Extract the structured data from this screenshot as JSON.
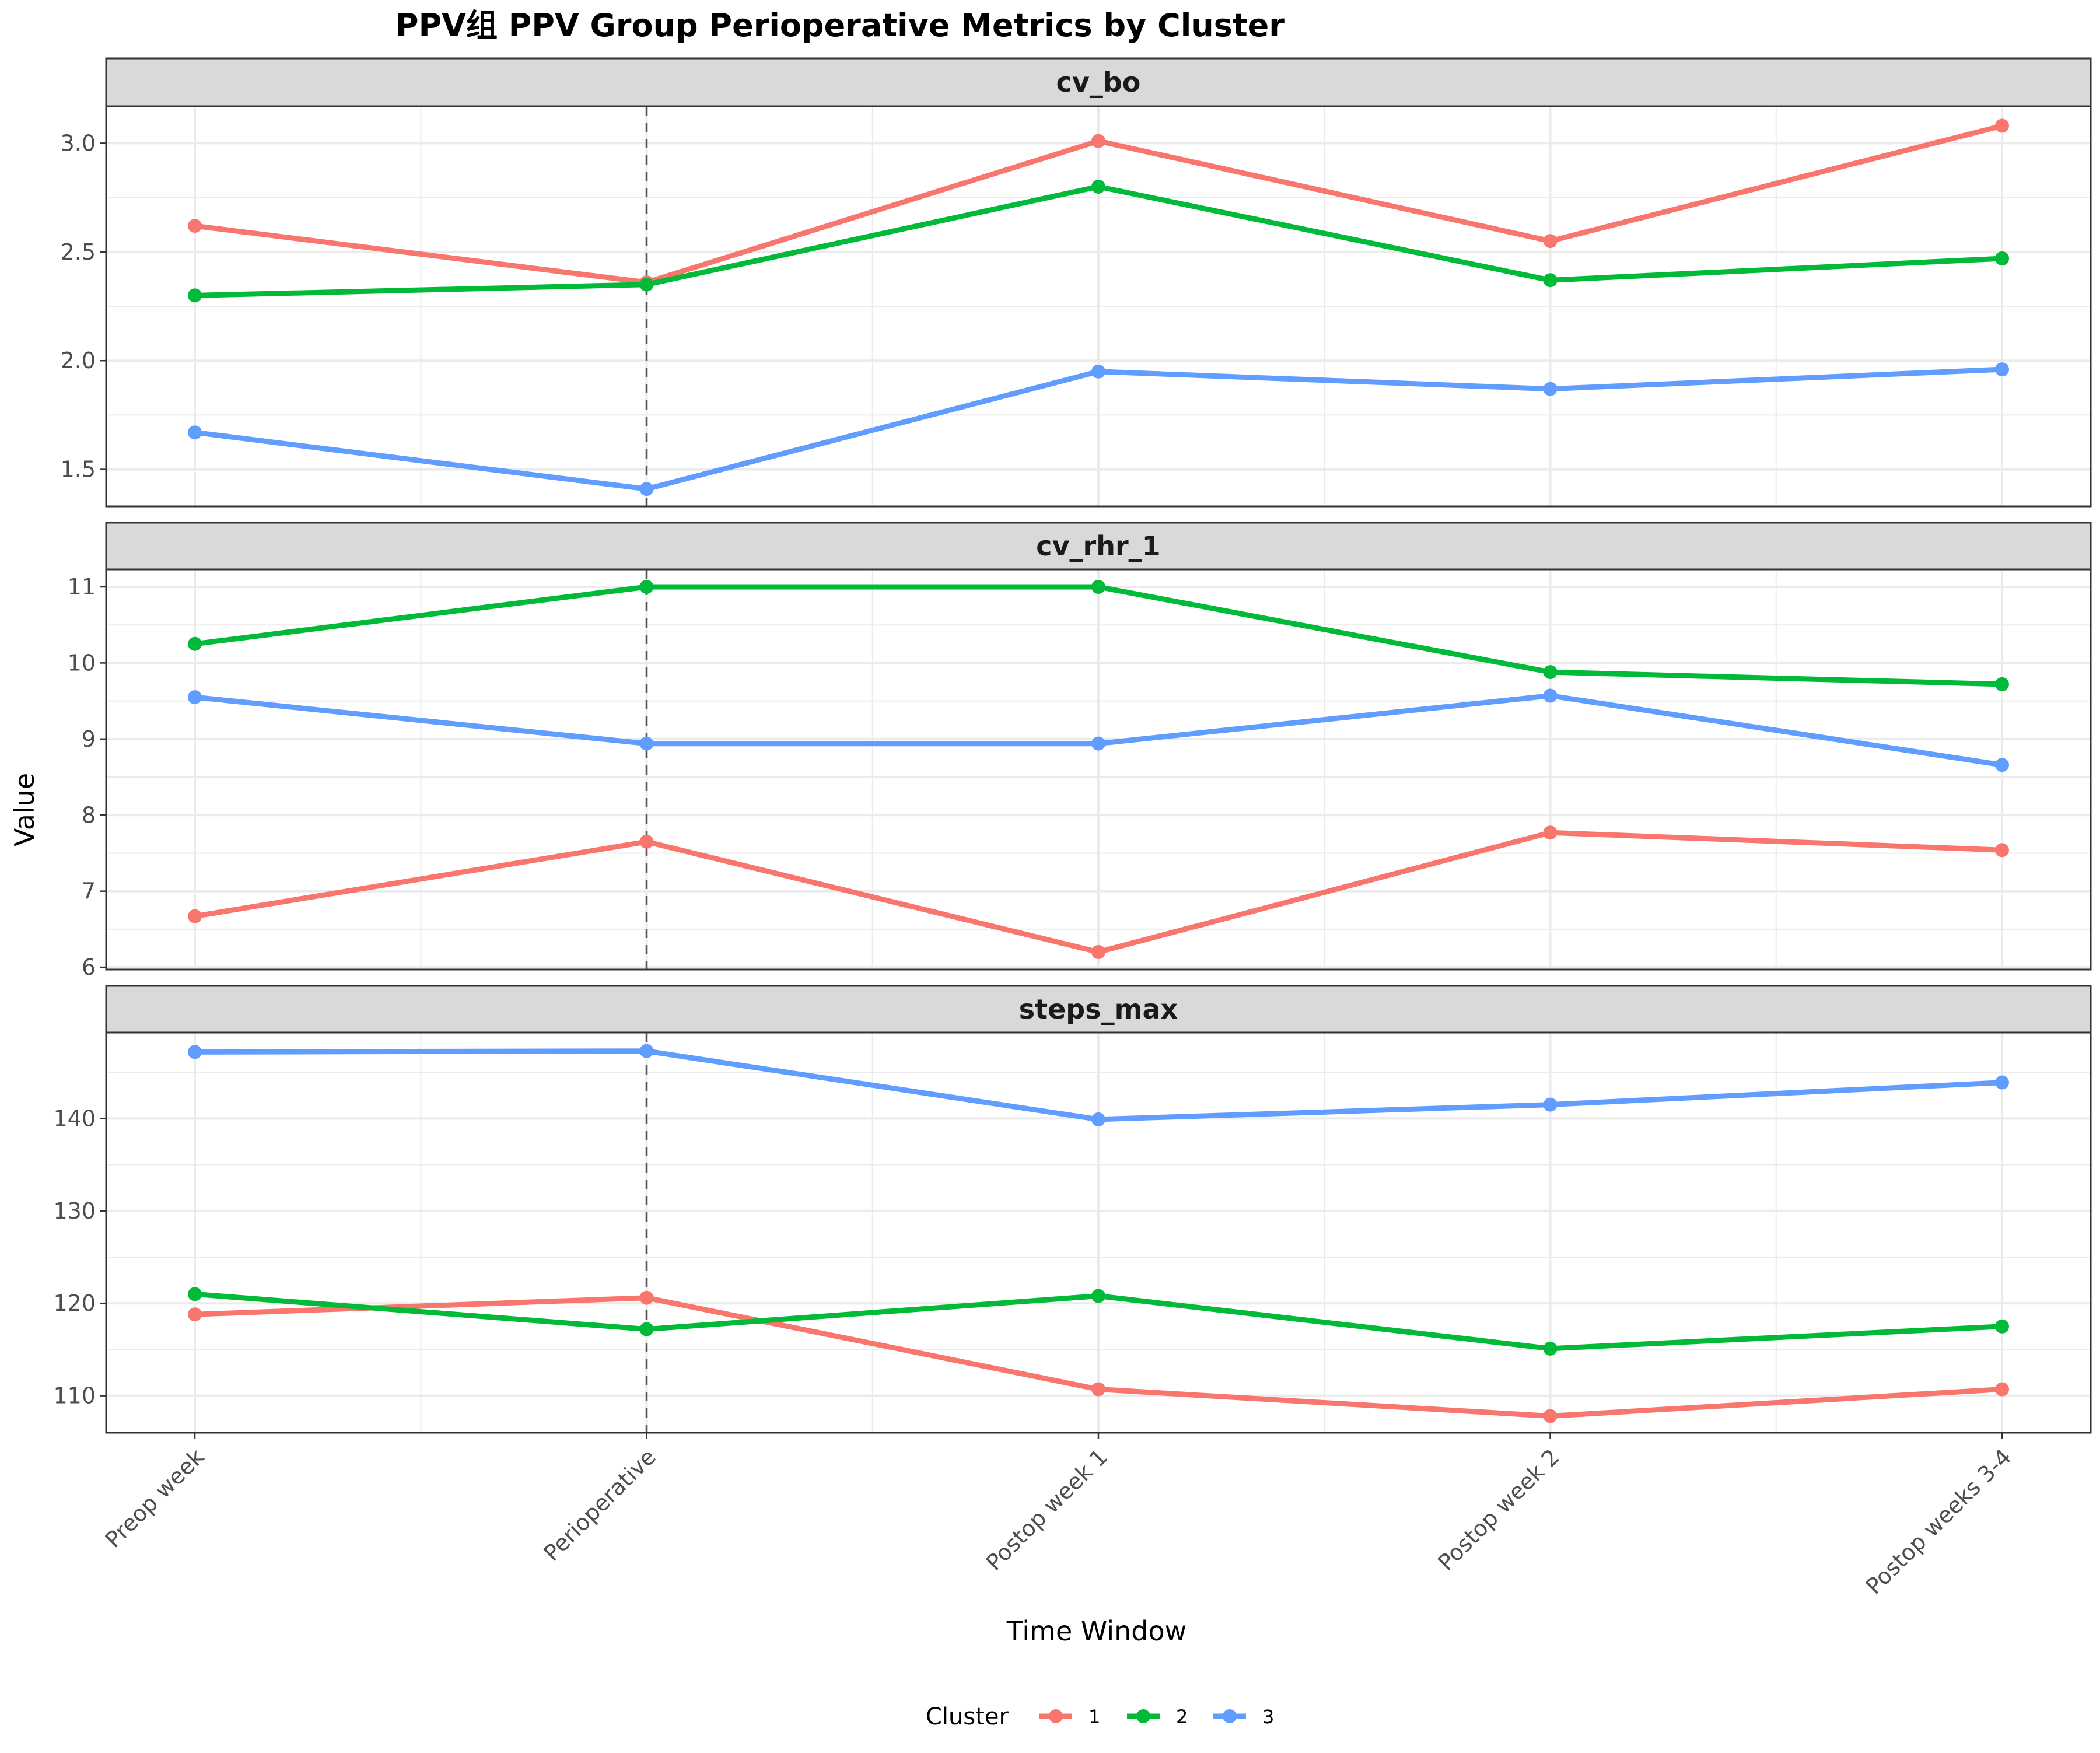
{
  "chart_data": {
    "type": "line",
    "title": "PPV组 PPV Group Perioperative Metrics by Cluster",
    "xlabel": "Time Window",
    "ylabel": "Value",
    "categories": [
      "Preop week",
      "Perioperative",
      "Postop week 1",
      "Postop week 2",
      "Postop weeks 3-4"
    ],
    "reference_line": {
      "category": "Perioperative",
      "style": "dashed"
    },
    "legend": {
      "title": "Cluster",
      "placement": "bottom",
      "entries": [
        "1",
        "2",
        "3"
      ]
    },
    "colors": {
      "1": "#F8766D",
      "2": "#00BA38",
      "3": "#619CFF"
    },
    "grid": true,
    "facets": [
      {
        "name": "cv_bo",
        "ylim": [
          1.33,
          3.17
        ],
        "yticks": [
          1.5,
          2.0,
          2.5,
          3.0
        ],
        "ytick_labels": [
          "1.5",
          "2.0",
          "2.5",
          "3.0"
        ],
        "series": [
          {
            "name": "1",
            "values": [
              2.62,
              2.36,
              3.01,
              2.55,
              3.08
            ]
          },
          {
            "name": "2",
            "values": [
              2.3,
              2.35,
              2.8,
              2.37,
              2.47
            ]
          },
          {
            "name": "3",
            "values": [
              1.67,
              1.41,
              1.95,
              1.87,
              1.96
            ]
          }
        ]
      },
      {
        "name": "cv_rhr_1",
        "ylim": [
          5.97,
          11.23
        ],
        "yticks": [
          6,
          7,
          8,
          9,
          10,
          11
        ],
        "ytick_labels": [
          "6",
          "7",
          "8",
          "9",
          "10",
          "11"
        ],
        "series": [
          {
            "name": "1",
            "values": [
              6.67,
              7.65,
              6.2,
              7.77,
              7.54
            ]
          },
          {
            "name": "2",
            "values": [
              10.25,
              11.0,
              11.0,
              9.88,
              9.72
            ]
          },
          {
            "name": "3",
            "values": [
              9.55,
              8.94,
              8.94,
              9.57,
              8.66
            ]
          }
        ]
      },
      {
        "name": "steps_max",
        "ylim": [
          106.0,
          149.3
        ],
        "yticks": [
          110,
          120,
          130,
          140
        ],
        "ytick_labels": [
          "110",
          "120",
          "130",
          "140"
        ],
        "series": [
          {
            "name": "1",
            "values": [
              118.8,
              120.6,
              110.7,
              107.8,
              110.7
            ]
          },
          {
            "name": "2",
            "values": [
              121.0,
              117.2,
              120.8,
              115.1,
              117.5
            ]
          },
          {
            "name": "3",
            "values": [
              147.2,
              147.3,
              139.9,
              141.5,
              143.9
            ]
          }
        ]
      }
    ]
  }
}
